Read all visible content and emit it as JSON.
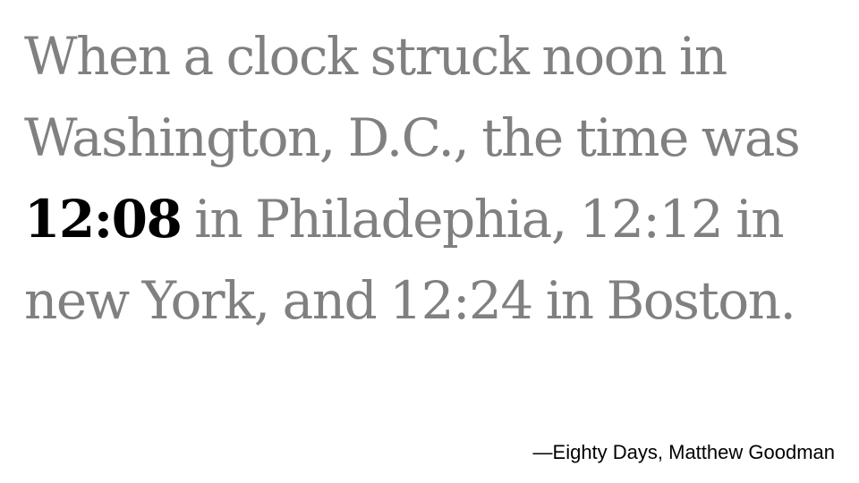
{
  "quote": {
    "text_before": "When a clock struck noon in Washington, D.C., the time was",
    "highlight": "12:08",
    "text_after": "in Philadephia, 12:12 in new York, and 12:24 in Boston."
  },
  "attribution": "—Eighty Days, Matthew Goodman",
  "colors": {
    "quote_text": "#808080",
    "highlight": "#000000",
    "attribution": "#000000",
    "background": "#ffffff"
  }
}
